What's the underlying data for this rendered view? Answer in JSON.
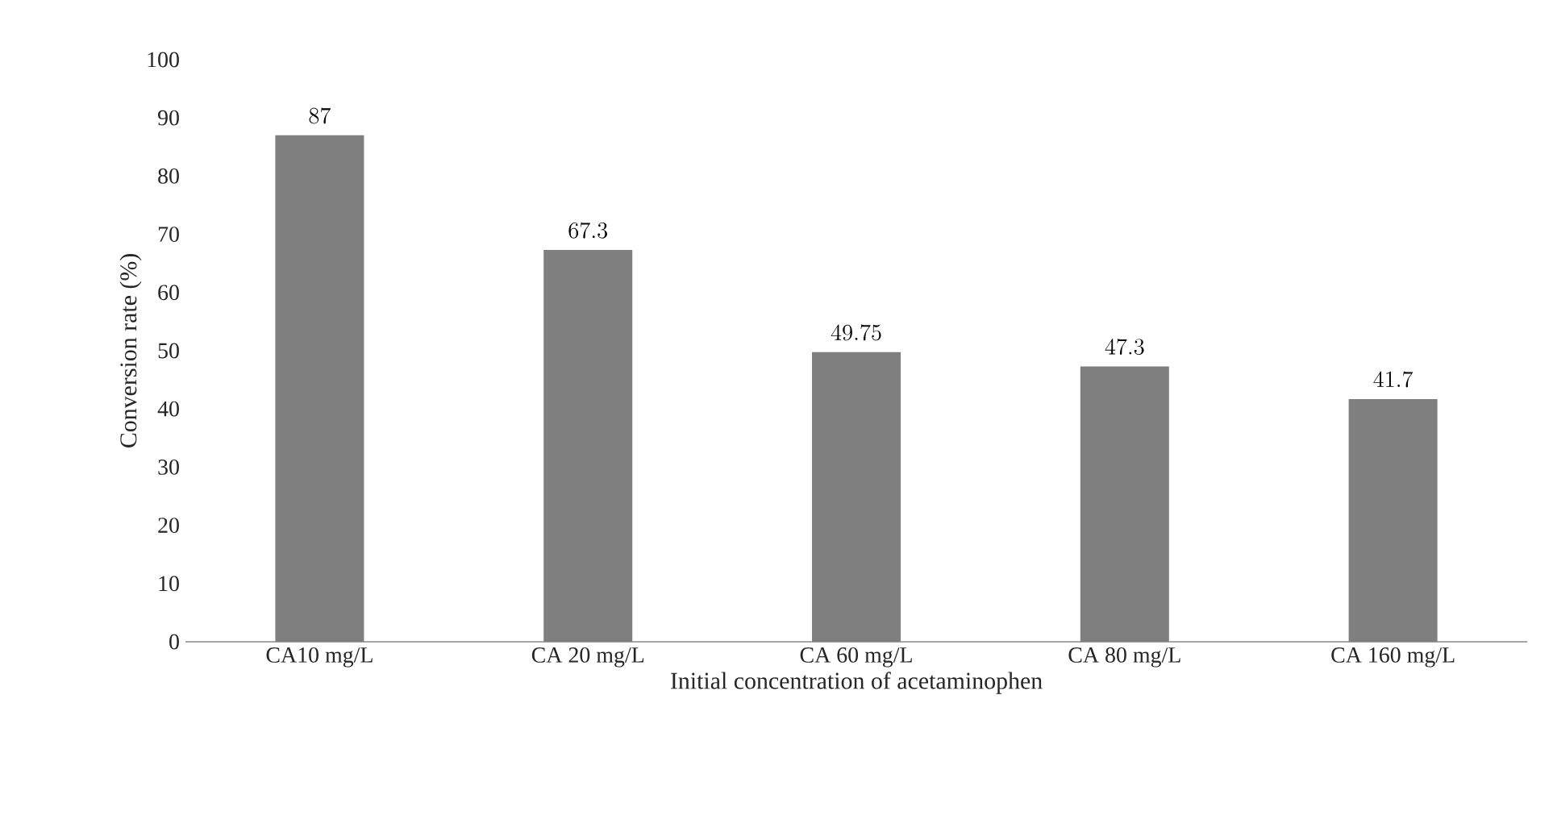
{
  "chart_data": {
    "type": "bar",
    "xlabel": "Initial concentration of acetaminophen",
    "ylabel": "Conversion rate (%)",
    "categories": [
      "CA10 mg/L",
      "CA 20 mg/L",
      "CA 60 mg/L",
      "CA 80 mg/L",
      "CA 160 mg/L"
    ],
    "values": [
      87,
      67.3,
      49.75,
      47.3,
      41.7
    ],
    "color": "#7f7f7f",
    "ylim": [
      0,
      100
    ],
    "yticks": [
      0,
      10,
      20,
      30,
      40,
      50,
      60,
      70,
      80,
      90,
      100
    ],
    "data_labels": true,
    "grid": false
  }
}
